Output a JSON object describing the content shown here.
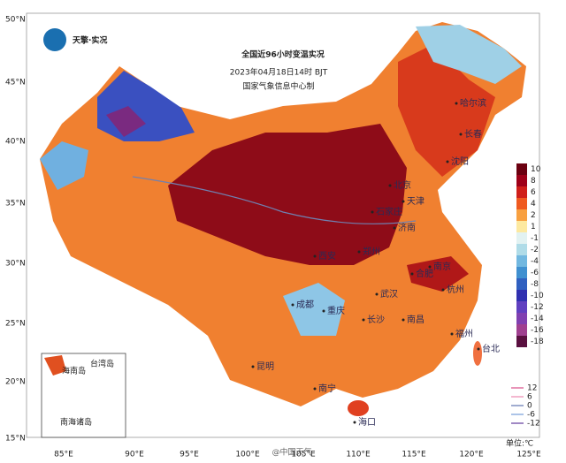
{
  "header": {
    "logo": "天擎·实况",
    "title": "全国近96小时变温实况",
    "subtitle": "2023年04月18日14时 BJT",
    "credit": "国家气象信息中心制"
  },
  "axes": {
    "lat_labels": [
      "50°N",
      "45°N",
      "40°N",
      "35°N",
      "30°N",
      "25°N",
      "20°N",
      "15°N"
    ],
    "lon_labels": [
      "85°E",
      "90°E",
      "95°E",
      "100°E",
      "105°E",
      "110°E",
      "115°E",
      "120°E",
      "125°E"
    ]
  },
  "cities": [
    "哈尔滨",
    "长春",
    "沈阳",
    "北京",
    "天津",
    "石家庄",
    "济南",
    "郑州",
    "西安",
    "武汉",
    "合肥",
    "南京",
    "杭州",
    "成都",
    "重庆",
    "长沙",
    "南昌",
    "昆明",
    "南宁",
    "福州",
    "台北",
    "海口"
  ],
  "inset": {
    "labels": [
      "海南岛",
      "南海诸岛",
      "台湾岛"
    ]
  },
  "colorbar": {
    "unit": "单位:℃",
    "levels": [
      {
        "value": 10,
        "color": "#6b0010"
      },
      {
        "value": 8,
        "color": "#9e0018"
      },
      {
        "value": 6,
        "color": "#cf1f1a"
      },
      {
        "value": 4,
        "color": "#ef5a20"
      },
      {
        "value": 2,
        "color": "#f8a040"
      },
      {
        "value": 1,
        "color": "#fde9a0"
      },
      {
        "value": -1,
        "color": "#e2f2f2"
      },
      {
        "value": -2,
        "color": "#b0dce8"
      },
      {
        "value": -4,
        "color": "#72b8e0"
      },
      {
        "value": -6,
        "color": "#4090d0"
      },
      {
        "value": -8,
        "color": "#3060c0"
      },
      {
        "value": -10,
        "color": "#3030b0"
      },
      {
        "value": -12,
        "color": "#6040c0"
      },
      {
        "value": -14,
        "color": "#8040b0"
      },
      {
        "value": -16,
        "color": "#a04090"
      },
      {
        "value": -18,
        "color": "#5a1040"
      }
    ]
  },
  "line_legend": [
    {
      "value": 12,
      "color": "#e070a0"
    },
    {
      "value": 6,
      "color": "#f0a0c0"
    },
    {
      "value": 0,
      "color": "#8090c0"
    },
    {
      "value": -6,
      "color": "#90b0e0"
    },
    {
      "value": -12,
      "color": "#8060b0"
    }
  ],
  "watermark": "@中国天气"
}
